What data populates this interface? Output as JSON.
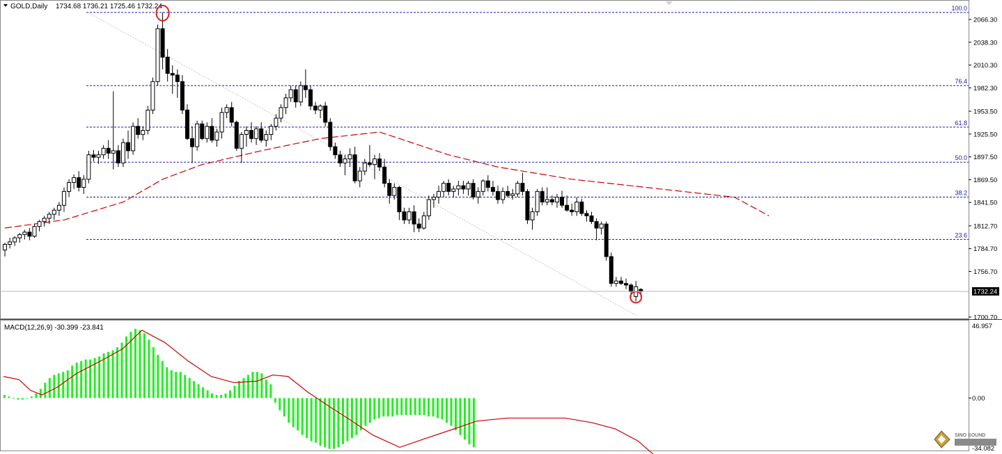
{
  "header": {
    "symbol": "GOLD,Daily",
    "ohlc": "1734.68 1736.21 1725.46 1732.24"
  },
  "macd": {
    "label": "MACD(12,26,9) -30.399 -23.841",
    "max_label": "46.957",
    "zero_label": "0.00",
    "min_label": "-34.082"
  },
  "price_axis": {
    "labels": [
      "2066.30",
      "2038.30",
      "2010.30",
      "1982.30",
      "1953.50",
      "1925.50",
      "1897.50",
      "1869.50",
      "1841.50",
      "1812.70",
      "1784.70",
      "1756.70",
      "1700.70"
    ]
  },
  "current_price": "1732.24",
  "watermark": "SINO SOUND",
  "colors": {
    "bull": "#ffffff",
    "bear": "#000000",
    "ma": "#cc0000",
    "fib": "#1a1aa6",
    "macd_hist": "#22ee22",
    "signal": "#cc0000",
    "marker": "#e02020"
  },
  "chart_data": [
    {
      "type": "candlestick",
      "title": "GOLD,Daily",
      "ylim": [
        1697,
        2080
      ],
      "fib_levels": [
        {
          "label": "100.0",
          "price": 2075
        },
        {
          "label": "76.4",
          "price": 1985
        },
        {
          "label": "61.8",
          "price": 1934
        },
        {
          "label": "50.0",
          "price": 1891
        },
        {
          "label": "38.2",
          "price": 1848
        },
        {
          "label": "23.6",
          "price": 1796
        }
      ],
      "trendline": {
        "from_price": 2076,
        "to_price": 1703
      },
      "highlighted": [
        "highest high",
        "lowest low"
      ],
      "candles": [
        [
          1783,
          1792,
          1775,
          1790
        ],
        [
          1790,
          1798,
          1785,
          1793
        ],
        [
          1793,
          1800,
          1788,
          1798
        ],
        [
          1798,
          1804,
          1792,
          1802
        ],
        [
          1802,
          1808,
          1796,
          1805
        ],
        [
          1805,
          1810,
          1795,
          1800
        ],
        [
          1800,
          1815,
          1798,
          1812
        ],
        [
          1812,
          1820,
          1806,
          1818
        ],
        [
          1818,
          1825,
          1812,
          1822
        ],
        [
          1822,
          1830,
          1815,
          1827
        ],
        [
          1827,
          1835,
          1820,
          1832
        ],
        [
          1832,
          1842,
          1825,
          1838
        ],
        [
          1838,
          1860,
          1830,
          1855
        ],
        [
          1855,
          1870,
          1848,
          1866
        ],
        [
          1866,
          1876,
          1858,
          1872
        ],
        [
          1872,
          1880,
          1855,
          1860
        ],
        [
          1860,
          1875,
          1852,
          1870
        ],
        [
          1870,
          1905,
          1865,
          1900
        ],
        [
          1900,
          1906,
          1892,
          1897
        ],
        [
          1897,
          1905,
          1889,
          1900
        ],
        [
          1900,
          1912,
          1895,
          1908
        ],
        [
          1908,
          1918,
          1895,
          1902
        ],
        [
          1902,
          1978,
          1882,
          1905
        ],
        [
          1905,
          1912,
          1885,
          1890
        ],
        [
          1890,
          1920,
          1885,
          1915
        ],
        [
          1915,
          1930,
          1895,
          1905
        ],
        [
          1905,
          1940,
          1900,
          1935
        ],
        [
          1935,
          1945,
          1920,
          1925
        ],
        [
          1925,
          1935,
          1918,
          1930
        ],
        [
          1930,
          1960,
          1925,
          1955
        ],
        [
          1955,
          1995,
          1950,
          1990
        ],
        [
          1990,
          2060,
          1985,
          2055
        ],
        [
          2055,
          2075,
          2005,
          2020
        ],
        [
          2020,
          2030,
          1990,
          2000
        ],
        [
          2000,
          2010,
          1975,
          1998
        ],
        [
          1998,
          2005,
          1970,
          1990
        ],
        [
          1990,
          1998,
          1950,
          1955
        ],
        [
          1955,
          1962,
          1918,
          1920
        ],
        [
          1920,
          1935,
          1890,
          1910
        ],
        [
          1910,
          1942,
          1905,
          1938
        ],
        [
          1938,
          1942,
          1918,
          1920
        ],
        [
          1920,
          1940,
          1915,
          1935
        ],
        [
          1935,
          1945,
          1915,
          1918
        ],
        [
          1918,
          1932,
          1910,
          1928
        ],
        [
          1928,
          1958,
          1920,
          1952
        ],
        [
          1952,
          1962,
          1945,
          1958
        ],
        [
          1958,
          1965,
          1935,
          1940
        ],
        [
          1940,
          1942,
          1905,
          1908
        ],
        [
          1908,
          1928,
          1890,
          1925
        ],
        [
          1925,
          1935,
          1910,
          1930
        ],
        [
          1930,
          1940,
          1915,
          1920
        ],
        [
          1920,
          1935,
          1912,
          1932
        ],
        [
          1932,
          1940,
          1915,
          1918
        ],
        [
          1918,
          1930,
          1910,
          1925
        ],
        [
          1925,
          1938,
          1918,
          1935
        ],
        [
          1935,
          1950,
          1930,
          1945
        ],
        [
          1945,
          1962,
          1940,
          1958
        ],
        [
          1958,
          1975,
          1950,
          1970
        ],
        [
          1970,
          1985,
          1965,
          1980
        ],
        [
          1980,
          1985,
          1958,
          1965
        ],
        [
          1965,
          1990,
          1960,
          1985
        ],
        [
          1985,
          2005,
          1970,
          1980
        ],
        [
          1980,
          1985,
          1955,
          1960
        ],
        [
          1960,
          1965,
          1950,
          1955
        ],
        [
          1955,
          1962,
          1945,
          1960
        ],
        [
          1960,
          1965,
          1935,
          1940
        ],
        [
          1940,
          1945,
          1905,
          1910
        ],
        [
          1910,
          1915,
          1895,
          1900
        ],
        [
          1900,
          1905,
          1885,
          1890
        ],
        [
          1890,
          1900,
          1875,
          1895
        ],
        [
          1895,
          1908,
          1885,
          1900
        ],
        [
          1900,
          1910,
          1865,
          1868
        ],
        [
          1868,
          1885,
          1860,
          1880
        ],
        [
          1880,
          1895,
          1875,
          1890
        ],
        [
          1890,
          1912,
          1885,
          1888
        ],
        [
          1888,
          1900,
          1870,
          1895
        ],
        [
          1895,
          1902,
          1880,
          1885
        ],
        [
          1885,
          1895,
          1860,
          1865
        ],
        [
          1865,
          1870,
          1840,
          1850
        ],
        [
          1850,
          1865,
          1845,
          1860
        ],
        [
          1860,
          1862,
          1820,
          1830
        ],
        [
          1830,
          1835,
          1815,
          1820
        ],
        [
          1820,
          1835,
          1815,
          1830
        ],
        [
          1830,
          1838,
          1805,
          1815
        ],
        [
          1815,
          1822,
          1805,
          1810
        ],
        [
          1810,
          1830,
          1808,
          1825
        ],
        [
          1825,
          1850,
          1820,
          1845
        ],
        [
          1845,
          1852,
          1835,
          1848
        ],
        [
          1848,
          1862,
          1840,
          1855
        ],
        [
          1855,
          1868,
          1848,
          1865
        ],
        [
          1865,
          1870,
          1850,
          1855
        ],
        [
          1855,
          1862,
          1848,
          1858
        ],
        [
          1858,
          1868,
          1850,
          1862
        ],
        [
          1862,
          1868,
          1852,
          1858
        ],
        [
          1858,
          1868,
          1850,
          1865
        ],
        [
          1865,
          1870,
          1845,
          1848
        ],
        [
          1848,
          1860,
          1840,
          1855
        ],
        [
          1855,
          1870,
          1850,
          1868
        ],
        [
          1868,
          1875,
          1855,
          1860
        ],
        [
          1860,
          1868,
          1850,
          1855
        ],
        [
          1855,
          1862,
          1840,
          1845
        ],
        [
          1845,
          1860,
          1840,
          1855
        ],
        [
          1855,
          1862,
          1848,
          1850
        ],
        [
          1850,
          1858,
          1845,
          1852
        ],
        [
          1852,
          1868,
          1848,
          1865
        ],
        [
          1865,
          1878,
          1850,
          1855
        ],
        [
          1855,
          1858,
          1815,
          1820
        ],
        [
          1820,
          1835,
          1808,
          1830
        ],
        [
          1830,
          1858,
          1825,
          1855
        ],
        [
          1855,
          1860,
          1838,
          1842
        ],
        [
          1842,
          1860,
          1838,
          1845
        ],
        [
          1845,
          1850,
          1838,
          1842
        ],
        [
          1842,
          1852,
          1835,
          1848
        ],
        [
          1848,
          1856,
          1835,
          1838
        ],
        [
          1838,
          1850,
          1830,
          1832
        ],
        [
          1832,
          1840,
          1825,
          1830
        ],
        [
          1830,
          1848,
          1825,
          1842
        ],
        [
          1842,
          1846,
          1825,
          1828
        ],
        [
          1828,
          1832,
          1818,
          1825
        ],
        [
          1825,
          1830,
          1815,
          1818
        ],
        [
          1818,
          1822,
          1795,
          1810
        ],
        [
          1810,
          1818,
          1802,
          1815
        ],
        [
          1815,
          1818,
          1770,
          1775
        ],
        [
          1775,
          1780,
          1738,
          1742
        ],
        [
          1742,
          1750,
          1738,
          1745
        ],
        [
          1745,
          1750,
          1740,
          1742
        ],
        [
          1742,
          1748,
          1735,
          1740
        ],
        [
          1740,
          1742,
          1725,
          1732
        ],
        [
          1726,
          1745,
          1720,
          1738
        ],
        [
          1734.68,
          1736.21,
          1725.46,
          1732.24
        ]
      ],
      "ma": [
        [
          0,
          1810
        ],
        [
          12,
          1820
        ],
        [
          24,
          1842
        ],
        [
          32,
          1870
        ],
        [
          40,
          1888
        ],
        [
          52,
          1905
        ],
        [
          64,
          1920
        ],
        [
          76,
          1928
        ],
        [
          90,
          1900
        ],
        [
          100,
          1885
        ],
        [
          115,
          1870
        ],
        [
          130,
          1860
        ],
        [
          148,
          1848
        ],
        [
          155,
          1825
        ]
      ]
    },
    {
      "type": "bar",
      "title": "MACD(12,26,9)",
      "ylim": [
        -34.082,
        46.957
      ],
      "histogram": [
        2,
        1,
        0,
        -1,
        -1,
        0,
        1,
        3,
        6,
        10,
        13,
        15,
        16,
        17,
        18,
        21,
        23,
        24,
        25,
        25,
        26,
        27,
        29,
        30,
        31,
        33,
        36,
        40,
        43,
        45,
        44,
        42,
        38,
        33,
        28,
        24,
        20,
        18,
        17,
        17,
        15,
        13,
        11,
        9,
        7,
        5,
        3,
        2,
        2,
        3,
        5,
        8,
        11,
        13,
        15,
        17,
        17,
        16,
        12,
        9,
        -3,
        -8,
        -12,
        -16,
        -19,
        -21,
        -24,
        -26,
        -28,
        -29,
        -31,
        -32,
        -33,
        -33,
        -32,
        -30,
        -28,
        -26,
        -24,
        -21,
        -18,
        -16,
        -14,
        -13,
        -12,
        -12,
        -12,
        -11,
        -11,
        -11,
        -11,
        -11,
        -11,
        -11,
        -12,
        -12,
        -13,
        -14,
        -16,
        -18,
        -21,
        -24,
        -27,
        -30,
        -32
      ],
      "signal": [
        [
          0,
          14
        ],
        [
          8,
          12
        ],
        [
          14,
          5
        ],
        [
          20,
          2
        ],
        [
          28,
          7
        ],
        [
          38,
          16
        ],
        [
          52,
          25
        ],
        [
          62,
          32
        ],
        [
          72,
          44
        ],
        [
          84,
          36
        ],
        [
          96,
          24
        ],
        [
          108,
          14
        ],
        [
          120,
          10
        ],
        [
          132,
          11
        ],
        [
          140,
          15
        ],
        [
          148,
          14
        ],
        [
          158,
          4
        ],
        [
          170,
          -6
        ],
        [
          180,
          -14
        ],
        [
          192,
          -24
        ],
        [
          206,
          -32
        ],
        [
          220,
          -26
        ],
        [
          232,
          -21
        ],
        [
          246,
          -15
        ],
        [
          262,
          -13
        ],
        [
          276,
          -13
        ],
        [
          292,
          -13
        ],
        [
          306,
          -16
        ],
        [
          318,
          -20
        ],
        [
          330,
          -28
        ],
        [
          341,
          -40
        ]
      ]
    }
  ]
}
